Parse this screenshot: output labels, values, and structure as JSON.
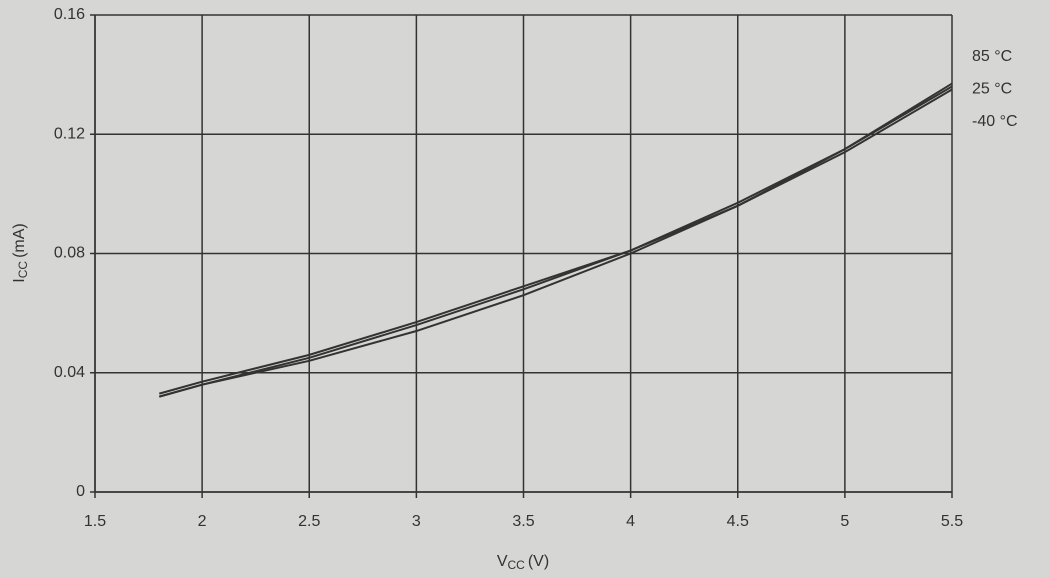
{
  "chart_data": {
    "type": "line",
    "x_label": {
      "symbol": "V",
      "subscript": "CC",
      "unit": "(V)"
    },
    "y_label": {
      "symbol": "I",
      "subscript": "CC",
      "unit": "(mA)"
    },
    "x": [
      1.8,
      2,
      2.5,
      3,
      3.5,
      4,
      4.5,
      5,
      5.5
    ],
    "series": [
      {
        "name": "85 °C",
        "color": "#333333",
        "values": [
          0.033,
          0.037,
          0.046,
          0.057,
          0.069,
          0.081,
          0.097,
          0.115,
          0.137
        ]
      },
      {
        "name": "25 °C",
        "color": "#333333",
        "values": [
          0.032,
          0.036,
          0.045,
          0.056,
          0.068,
          0.081,
          0.096,
          0.115,
          0.136
        ]
      },
      {
        "name": "-40 °C",
        "color": "#333333",
        "values": [
          0.032,
          0.036,
          0.044,
          0.054,
          0.066,
          0.08,
          0.096,
          0.114,
          0.135
        ]
      }
    ],
    "xlim": [
      1.5,
      5.5
    ],
    "xticks": [
      1.5,
      2,
      2.5,
      3,
      3.5,
      4,
      4.5,
      5,
      5.5
    ],
    "ylim": [
      0,
      0.16
    ],
    "yticks": [
      0,
      0.04,
      0.08,
      0.12,
      0.16
    ],
    "grid": true,
    "legend": "right"
  }
}
